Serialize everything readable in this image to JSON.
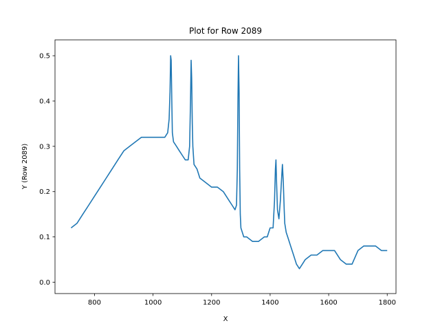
{
  "chart_data": {
    "type": "line",
    "title": "Plot for Row 2089",
    "xlabel": "X",
    "ylabel": "Y (Row 2089)",
    "xlim": [
      665,
      1830
    ],
    "ylim": [
      -0.025,
      0.535
    ],
    "xticks": [
      800,
      1000,
      1200,
      1400,
      1600,
      1800
    ],
    "yticks": [
      0.0,
      0.1,
      0.2,
      0.3,
      0.4,
      0.5
    ],
    "ytick_labels": [
      "0.0",
      "0.1",
      "0.2",
      "0.3",
      "0.4",
      "0.5"
    ],
    "grid": false,
    "legend": "none",
    "color": "#1f77b4",
    "series": [
      {
        "x": [
          720,
          740,
          760,
          780,
          800,
          820,
          840,
          860,
          880,
          900,
          920,
          940,
          960,
          980,
          1000,
          1020,
          1040,
          1050,
          1055,
          1058,
          1060,
          1062,
          1064,
          1066,
          1070,
          1080,
          1090,
          1100,
          1110,
          1120,
          1125,
          1128,
          1130,
          1132,
          1134,
          1136,
          1140,
          1150,
          1160,
          1180,
          1200,
          1220,
          1240,
          1260,
          1270,
          1280,
          1285,
          1288,
          1290,
          1292,
          1294,
          1296,
          1298,
          1300,
          1310,
          1320,
          1340,
          1360,
          1380,
          1390,
          1400,
          1410,
          1415,
          1418,
          1420,
          1422,
          1425,
          1430,
          1435,
          1440,
          1442,
          1445,
          1448,
          1450,
          1455,
          1460,
          1470,
          1480,
          1490,
          1500,
          1510,
          1520,
          1540,
          1560,
          1580,
          1600,
          1620,
          1640,
          1660,
          1680,
          1700,
          1720,
          1740,
          1760,
          1780,
          1800
        ],
        "y": [
          0.12,
          0.13,
          0.15,
          0.17,
          0.19,
          0.21,
          0.23,
          0.25,
          0.27,
          0.29,
          0.3,
          0.31,
          0.32,
          0.32,
          0.32,
          0.32,
          0.32,
          0.33,
          0.36,
          0.42,
          0.5,
          0.49,
          0.4,
          0.33,
          0.31,
          0.3,
          0.29,
          0.28,
          0.27,
          0.27,
          0.3,
          0.4,
          0.49,
          0.45,
          0.35,
          0.3,
          0.26,
          0.25,
          0.23,
          0.22,
          0.21,
          0.21,
          0.2,
          0.18,
          0.17,
          0.16,
          0.17,
          0.25,
          0.4,
          0.5,
          0.42,
          0.25,
          0.15,
          0.12,
          0.1,
          0.1,
          0.09,
          0.09,
          0.1,
          0.1,
          0.12,
          0.12,
          0.18,
          0.25,
          0.27,
          0.22,
          0.16,
          0.14,
          0.18,
          0.24,
          0.26,
          0.22,
          0.16,
          0.13,
          0.11,
          0.1,
          0.08,
          0.06,
          0.04,
          0.03,
          0.04,
          0.05,
          0.06,
          0.06,
          0.07,
          0.07,
          0.07,
          0.05,
          0.04,
          0.04,
          0.07,
          0.08,
          0.08,
          0.08,
          0.07,
          0.07
        ]
      }
    ]
  }
}
